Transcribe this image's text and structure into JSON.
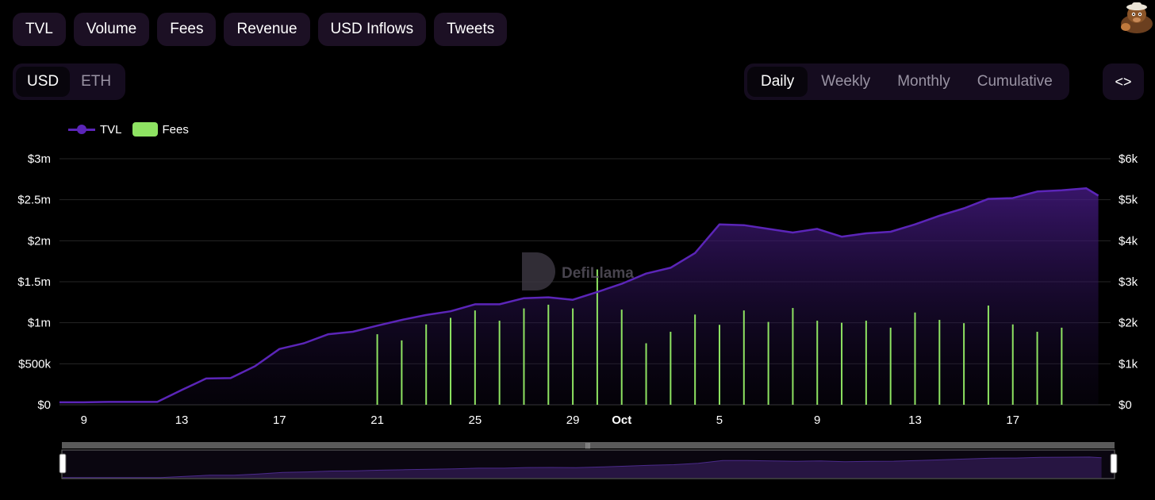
{
  "metric_tabs": [
    {
      "label": "TVL",
      "active": true
    },
    {
      "label": "Volume",
      "active": false
    },
    {
      "label": "Fees",
      "active": true
    },
    {
      "label": "Revenue",
      "active": false
    },
    {
      "label": "USD Inflows",
      "active": false
    },
    {
      "label": "Tweets",
      "active": false
    }
  ],
  "currency": {
    "options": [
      "USD",
      "ETH"
    ],
    "selected": "USD"
  },
  "period": {
    "options": [
      "Daily",
      "Weekly",
      "Monthly",
      "Cumulative"
    ],
    "selected": "Daily"
  },
  "embed_icon": "code-icon",
  "embed_glyph": "<>",
  "watermark": "DefiLlama",
  "colors": {
    "tvl": "#5b25b8",
    "fees": "#8ee362",
    "active_tab": "#3b1560",
    "tab": "#1c1024"
  },
  "chart_data": {
    "type": "line",
    "legend": [
      "TVL",
      "Fees"
    ],
    "legend_position": "top-left",
    "grid": true,
    "x_ticks": [
      "9",
      "13",
      "17",
      "21",
      "25",
      "29",
      "Oct",
      "5",
      "9",
      "13",
      "17"
    ],
    "x_range": [
      8,
      51
    ],
    "y_left": {
      "ticks": [
        "$0",
        "$500k",
        "$1m",
        "$1.5m",
        "$2m",
        "$2.5m",
        "$3m"
      ],
      "range": [
        0,
        3000000
      ]
    },
    "y_right": {
      "ticks": [
        "$0",
        "$1k",
        "$2k",
        "$3k",
        "$4k",
        "$5k",
        "$6k"
      ],
      "range": [
        0,
        6000
      ]
    },
    "series": [
      {
        "name": "TVL",
        "kind": "area",
        "axis": "left",
        "x": [
          8,
          9,
          10,
          11,
          12,
          13,
          14,
          15,
          16,
          17,
          18,
          19,
          20,
          21,
          22,
          23,
          24,
          25,
          26,
          27,
          28,
          29,
          30,
          31,
          32,
          33,
          34,
          35,
          36,
          37,
          38,
          39,
          40,
          41,
          42,
          43,
          44,
          45,
          46,
          47,
          48,
          49,
          50,
          50.5
        ],
        "values": [
          30000,
          30000,
          35000,
          35000,
          35000,
          180000,
          320000,
          325000,
          470000,
          680000,
          750000,
          860000,
          890000,
          965000,
          1035000,
          1095000,
          1140000,
          1225000,
          1225000,
          1300000,
          1310000,
          1280000,
          1375000,
          1475000,
          1600000,
          1670000,
          1850000,
          2200000,
          2190000,
          2145000,
          2100000,
          2145000,
          2050000,
          2090000,
          2110000,
          2200000,
          2305000,
          2395000,
          2510000,
          2520000,
          2600000,
          2615000,
          2640000,
          2550000
        ]
      },
      {
        "name": "Fees",
        "kind": "bar",
        "axis": "right",
        "x": [
          21,
          22,
          23,
          24,
          25,
          26,
          27,
          28,
          29,
          30,
          31,
          32,
          33,
          34,
          35,
          36,
          37,
          38,
          39,
          40,
          41,
          42,
          43,
          44,
          45,
          46,
          47,
          48,
          49
        ],
        "values": [
          1720,
          1570,
          1960,
          2120,
          2300,
          2050,
          2350,
          2440,
          2350,
          3300,
          2320,
          1500,
          1780,
          2200,
          1950,
          2300,
          2020,
          2360,
          2050,
          2000,
          2050,
          1880,
          2250,
          2070,
          1990,
          2420,
          1960,
          1780,
          1880
        ]
      }
    ]
  }
}
